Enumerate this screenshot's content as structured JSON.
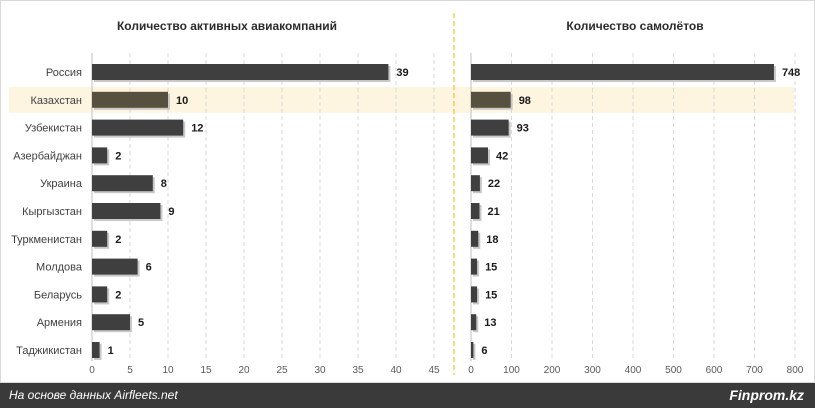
{
  "highlight": {
    "category": "Казахстан",
    "band_color": "#fdf5df",
    "bar_color": "#58503e"
  },
  "colors": {
    "bar": "#3f3f3f",
    "divider": "#f0c030",
    "grid": "#d9d9d9"
  },
  "chart_data": [
    {
      "type": "bar",
      "orientation": "horizontal",
      "title": "Количество активных авиакомпаний",
      "categories": [
        "Россия",
        "Казахстан",
        "Узбекистан",
        "Азербайджан",
        "Украина",
        "Кыргызстан",
        "Туркменистан",
        "Молдова",
        "Беларусь",
        "Армения",
        "Таджикистан"
      ],
      "values": [
        39,
        10,
        12,
        2,
        8,
        9,
        2,
        6,
        2,
        5,
        1
      ],
      "xlim": [
        0,
        45
      ],
      "xticks": [
        0,
        5,
        10,
        15,
        20,
        25,
        30,
        35,
        40,
        45
      ],
      "grid": true
    },
    {
      "type": "bar",
      "orientation": "horizontal",
      "title": "Количество самолётов",
      "categories": [
        "Россия",
        "Казахстан",
        "Узбекистан",
        "Азербайджан",
        "Украина",
        "Кыргызстан",
        "Туркменистан",
        "Молдова",
        "Беларусь",
        "Армения",
        "Таджикистан"
      ],
      "values": [
        748,
        98,
        93,
        42,
        22,
        21,
        18,
        15,
        15,
        13,
        6
      ],
      "xlim": [
        0,
        800
      ],
      "xticks": [
        0,
        100,
        200,
        300,
        400,
        500,
        600,
        700,
        800
      ],
      "grid": true
    }
  ],
  "footer": {
    "source": "На основе данных Airfleets.net",
    "brand": "Finprom.kz"
  }
}
